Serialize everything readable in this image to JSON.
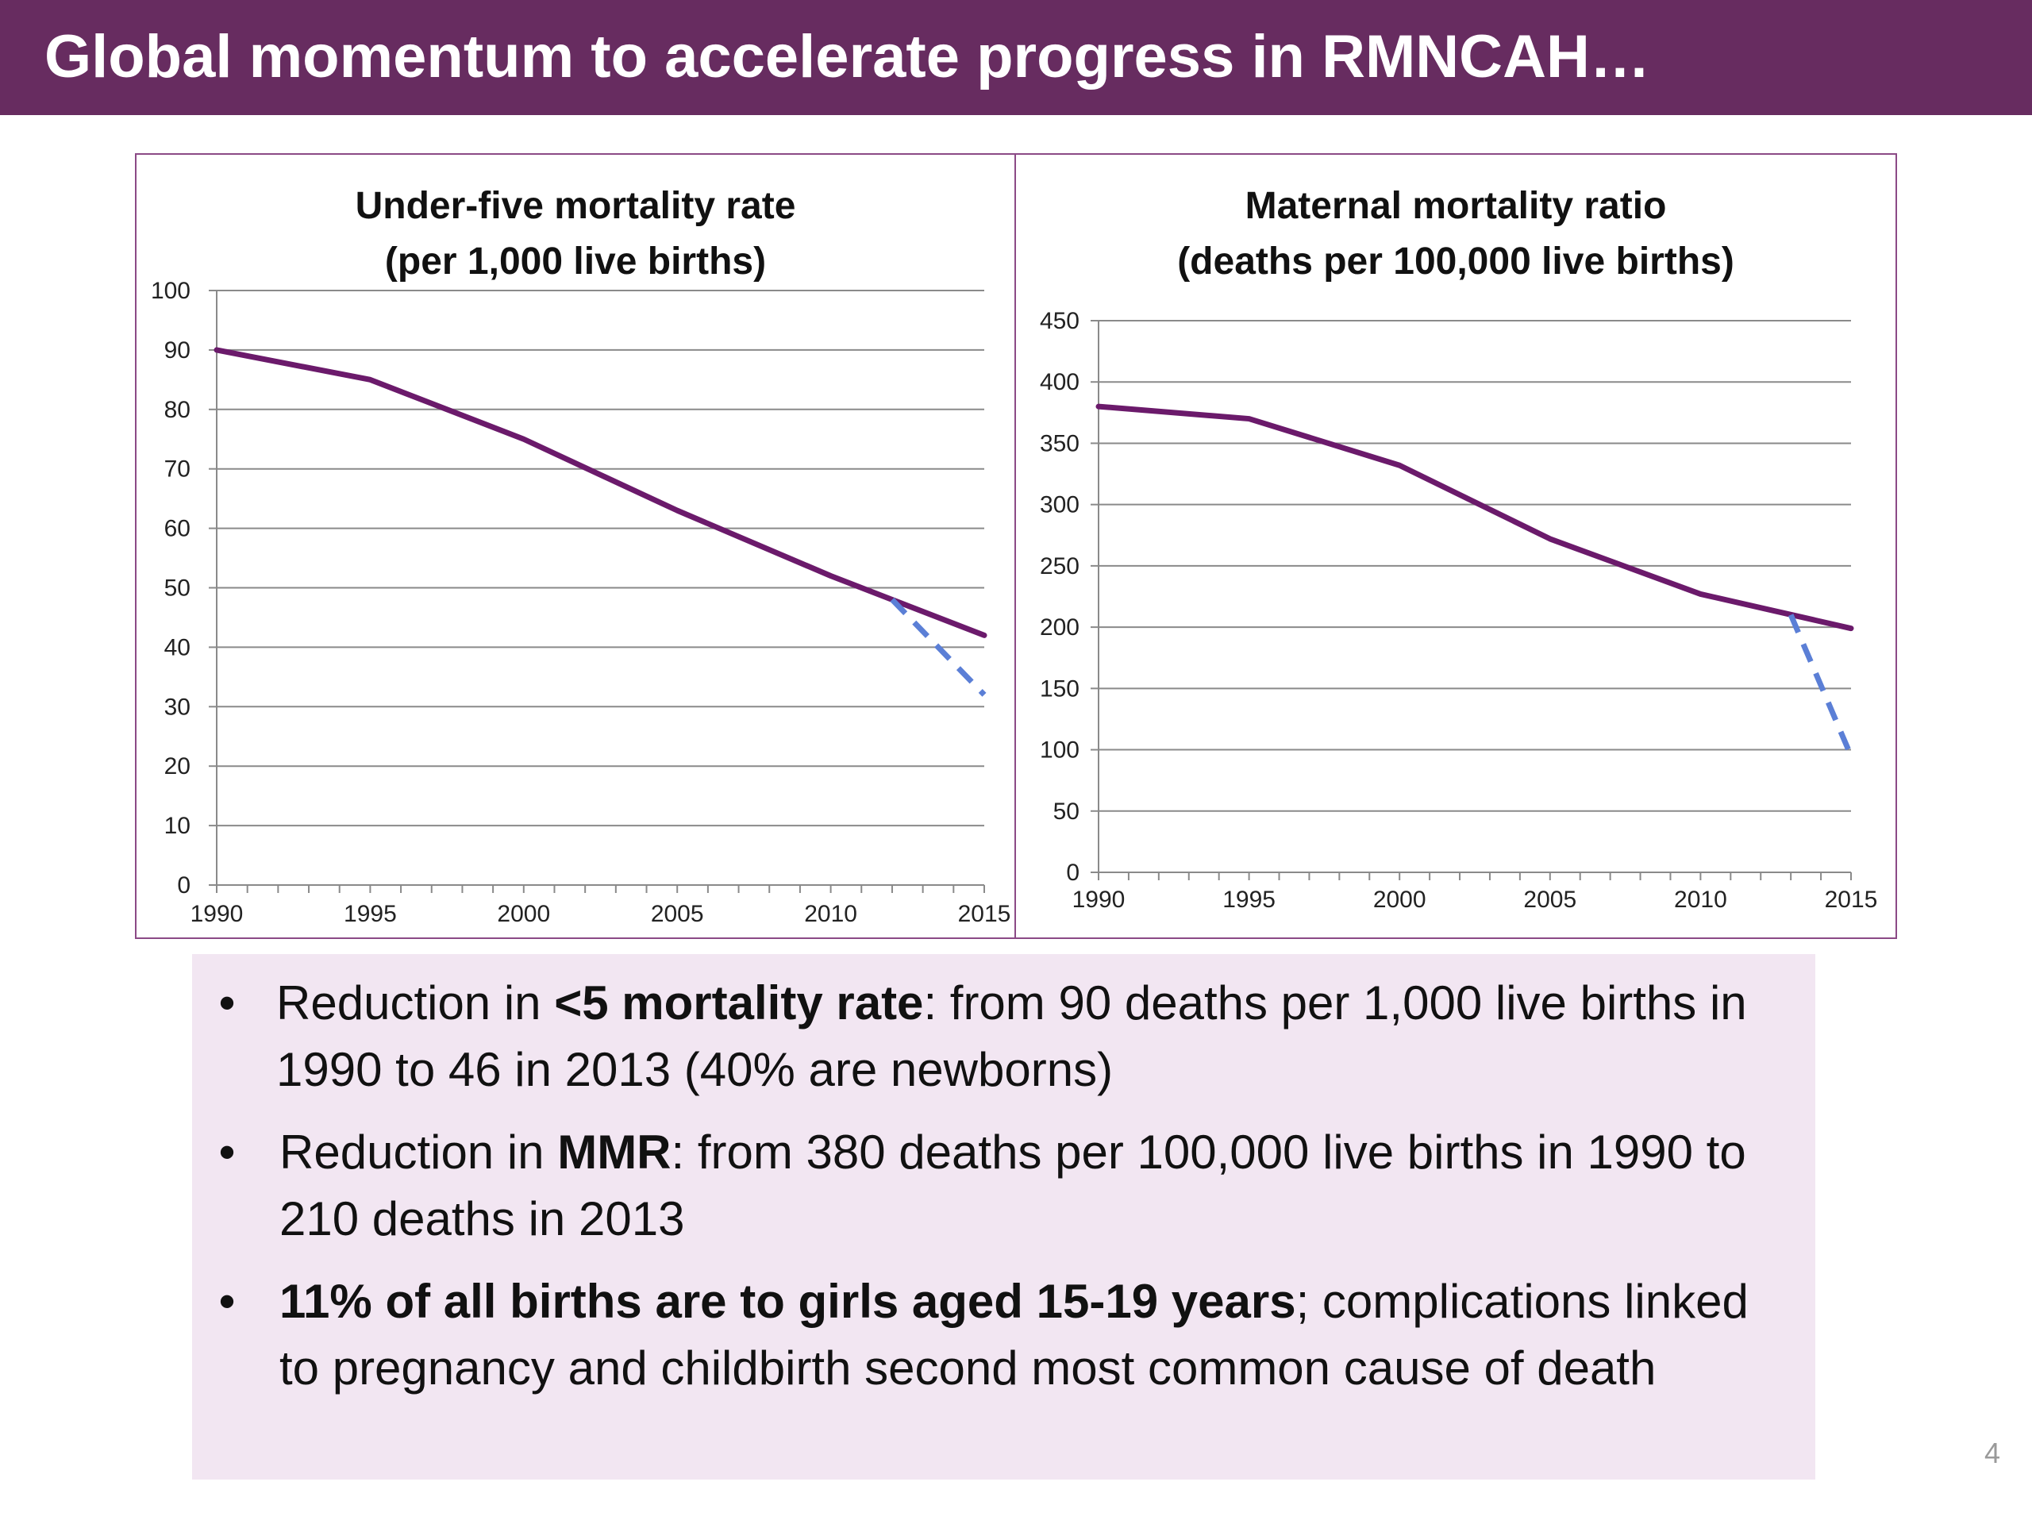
{
  "slide": {
    "title": "Global momentum to accelerate progress in RMNCAH…",
    "page_number": "4"
  },
  "colors": {
    "title_bar": "#672c60",
    "actual_line": "#6b1a6b",
    "target_line": "#5b7fd6",
    "bullet_box": "#f2e6f2"
  },
  "chart_data": [
    {
      "type": "line",
      "title": "Under-five mortality rate",
      "subtitle": "(per 1,000 live births)",
      "xlabel": "",
      "ylabel": "",
      "xlim": [
        1990,
        2015
      ],
      "ylim": [
        0,
        100
      ],
      "y_ticks": [
        "0",
        "10",
        "20",
        "30",
        "40",
        "50",
        "60",
        "70",
        "80",
        "90",
        "100"
      ],
      "x_ticks": [
        "1990",
        "1995",
        "2000",
        "2005",
        "2010",
        "2015"
      ],
      "grid": true,
      "series": [
        {
          "style": "solid",
          "x": [
            1990,
            1995,
            2000,
            2005,
            2010,
            2015
          ],
          "y": [
            90,
            85,
            75,
            63,
            52,
            42
          ]
        },
        {
          "style": "dashed",
          "x": [
            2012,
            2015
          ],
          "y": [
            48,
            32
          ]
        }
      ]
    },
    {
      "type": "line",
      "title": "Maternal mortality ratio",
      "subtitle": "(deaths per 100,000 live births)",
      "xlabel": "",
      "ylabel": "",
      "xlim": [
        1990,
        2015
      ],
      "ylim": [
        0,
        450
      ],
      "y_ticks": [
        "0",
        "50",
        "100",
        "150",
        "200",
        "250",
        "300",
        "350",
        "400",
        "450"
      ],
      "x_ticks": [
        "1990",
        "1995",
        "2000",
        "2005",
        "2010",
        "2015"
      ],
      "grid": true,
      "series": [
        {
          "style": "solid",
          "x": [
            1990,
            1995,
            2000,
            2005,
            2010,
            2015
          ],
          "y": [
            380,
            370,
            332,
            272,
            227,
            199
          ]
        },
        {
          "style": "dashed",
          "x": [
            2013,
            2015
          ],
          "y": [
            210,
            95
          ]
        }
      ]
    }
  ],
  "bullets": [
    {
      "pre": "Reduction in ",
      "bold": "<5 mortality rate",
      "post": ": from 90 deaths per 1,000 live births in 1990 to 46 in 2013 (40% are newborns)"
    },
    {
      "pre": "Reduction in ",
      "bold": "MMR",
      "post": ": from 380 deaths per 100,000 live births in 1990 to 210 deaths in 2013"
    },
    {
      "pre": "",
      "bold": "11% of all births are to girls aged 15-19 years",
      "post": "; complications linked to pregnancy and  childbirth second most common cause of death"
    }
  ],
  "bullet_marker": "•"
}
